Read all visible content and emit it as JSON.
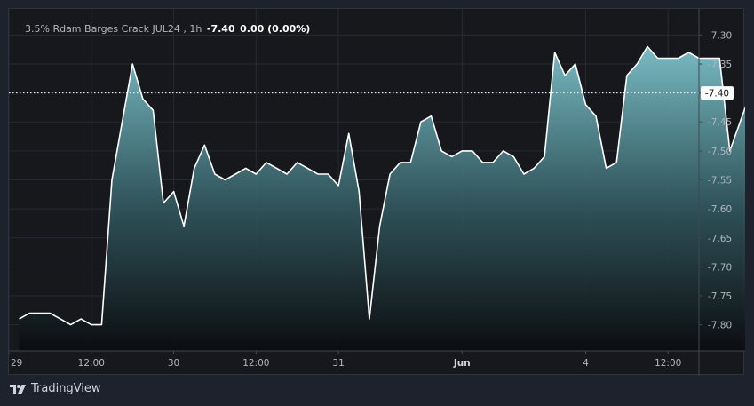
{
  "legend": {
    "name": "3.5% Rdam Barges Crack JUL24",
    "interval": "1h",
    "last": "-7.40",
    "change": "0.00 (0.00%)"
  },
  "brand": {
    "label": "TradingView",
    "icon": "tradingview-logo-icon"
  },
  "price_label": "-7.40",
  "colors": {
    "line": "#ffffff",
    "fill_top": "#7dc3cc",
    "fill_bottom": "#0b0c0f",
    "background": "#17181c",
    "grid": "#262a35"
  },
  "chart_data": {
    "type": "area",
    "y_ticks": [
      "-7.30",
      "-7.35",
      "-7.40",
      "-7.45",
      "-7.50",
      "-7.55",
      "-7.60",
      "-7.65",
      "-7.70",
      "-7.75",
      "-7.80"
    ],
    "ylim": [
      -7.845,
      -7.255
    ],
    "x_ticks": [
      {
        "label": "29",
        "t": -1
      },
      {
        "label": "12:00",
        "t": 7
      },
      {
        "label": "30",
        "t": 15
      },
      {
        "label": "12:00",
        "t": 23
      },
      {
        "label": "31",
        "t": 31
      },
      {
        "label": "Jun",
        "t": 43,
        "bold": true
      },
      {
        "label": "4",
        "t": 55
      },
      {
        "label": "12:00",
        "t": 63
      }
    ],
    "xlim": [
      -1,
      66
    ],
    "last_value": -7.4,
    "values": [
      -7.79,
      -7.78,
      -7.78,
      -7.78,
      -7.79,
      -7.8,
      -7.79,
      -7.8,
      -7.8,
      -7.55,
      -7.45,
      -7.35,
      -7.41,
      -7.43,
      -7.59,
      -7.57,
      -7.63,
      -7.53,
      -7.49,
      -7.54,
      -7.55,
      -7.54,
      -7.53,
      -7.54,
      -7.52,
      -7.53,
      -7.54,
      -7.52,
      -7.53,
      -7.54,
      -7.54,
      -7.56,
      -7.47,
      -7.57,
      -7.79,
      -7.63,
      -7.54,
      -7.52,
      -7.52,
      -7.45,
      -7.44,
      -7.5,
      -7.51,
      -7.5,
      -7.5,
      -7.52,
      -7.52,
      -7.5,
      -7.51,
      -7.54,
      -7.53,
      -7.51,
      -7.33,
      -7.37,
      -7.35,
      -7.42,
      -7.44,
      -7.53,
      -7.52,
      -7.37,
      -7.35,
      -7.32,
      -7.34,
      -7.34,
      -7.34,
      -7.33,
      -7.34,
      -7.34,
      -7.34,
      -7.5,
      -7.45,
      -7.4,
      -7.4
    ]
  }
}
